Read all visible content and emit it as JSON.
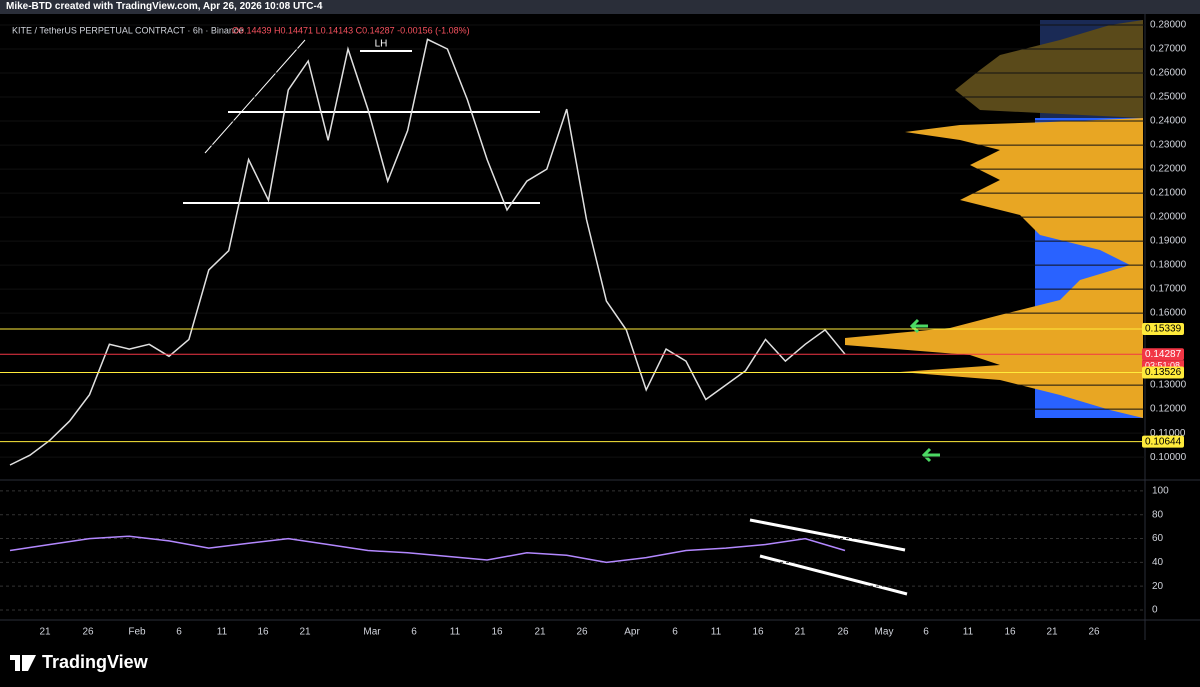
{
  "header": "Mike-BTD created with TradingView.com, Apr 26, 2026 10:08 UTC-4",
  "footer": "TradingView",
  "chart_data": [
    {
      "type": "line",
      "title": "KITE / TetherUS PERPETUAL CONTRACT · 6h · Binance",
      "ohlc_text": "O0.14439 H0.14471 L0.14143 C0.14287 -0.00156 (-1.08%)",
      "annotation": "LH",
      "color": "#e0e0e0",
      "values": [
        0.0967,
        0.1008,
        0.107,
        0.115,
        0.126,
        0.147,
        0.145,
        0.147,
        0.142,
        0.149,
        0.178,
        0.186,
        0.224,
        0.207,
        0.253,
        0.265,
        0.232,
        0.27,
        0.245,
        0.215,
        0.236,
        0.274,
        0.27,
        0.249,
        0.224,
        0.203,
        0.215,
        0.22,
        0.245,
        0.199,
        0.165,
        0.153,
        0.128,
        0.145,
        0.14,
        0.124,
        0.13,
        0.136,
        0.149,
        0.14,
        0.147,
        0.153,
        0.14287
      ],
      "ylim": [
        0.0913,
        0.2846
      ],
      "yticks": [
        {
          "value": 0.1,
          "label": "0.10000"
        },
        {
          "value": 0.11,
          "label": "0.11000"
        },
        {
          "value": 0.12,
          "label": "0.12000"
        },
        {
          "value": 0.13,
          "label": "0.13000"
        },
        {
          "value": 0.16,
          "label": "0.16000"
        },
        {
          "value": 0.17,
          "label": "0.17000"
        },
        {
          "value": 0.18,
          "label": "0.18000"
        },
        {
          "value": 0.19,
          "label": "0.19000"
        },
        {
          "value": 0.2,
          "label": "0.20000"
        },
        {
          "value": 0.21,
          "label": "0.21000"
        },
        {
          "value": 0.22,
          "label": "0.22000"
        },
        {
          "value": 0.23,
          "label": "0.23000"
        },
        {
          "value": 0.24,
          "label": "0.24000"
        },
        {
          "value": 0.25,
          "label": "0.25000"
        },
        {
          "value": 0.26,
          "label": "0.26000"
        },
        {
          "value": 0.27,
          "label": "0.27000"
        },
        {
          "value": 0.28,
          "label": "0.28000"
        }
      ],
      "price_labels": [
        {
          "value": 0.15339,
          "color": "#ffeb3b"
        },
        {
          "value": 0.14287,
          "color": "#f23645"
        },
        {
          "value": 0.13526,
          "color": "#ffeb3b"
        },
        {
          "value": 0.10644,
          "color": "#ffeb3b"
        }
      ],
      "countdown": "03:51:08",
      "xtick_labels": [
        "21",
        "26",
        "Feb",
        "6",
        "11",
        "16",
        "21",
        "Mar",
        "6",
        "11",
        "16",
        "21",
        "26",
        "Apr",
        "6",
        "11",
        "16",
        "21",
        "26",
        "May",
        "6",
        "11",
        "16",
        "21",
        "26"
      ]
    },
    {
      "type": "line",
      "color": "#b388ff",
      "values": [
        50,
        55,
        60,
        62,
        58,
        52,
        56,
        60,
        55,
        50,
        48,
        45,
        42,
        48,
        46,
        40,
        44,
        50,
        52,
        55,
        60,
        50
      ],
      "ylim": [
        -8.4,
        107.5
      ],
      "yticks": [
        0,
        20,
        40,
        60,
        80,
        100
      ]
    }
  ]
}
